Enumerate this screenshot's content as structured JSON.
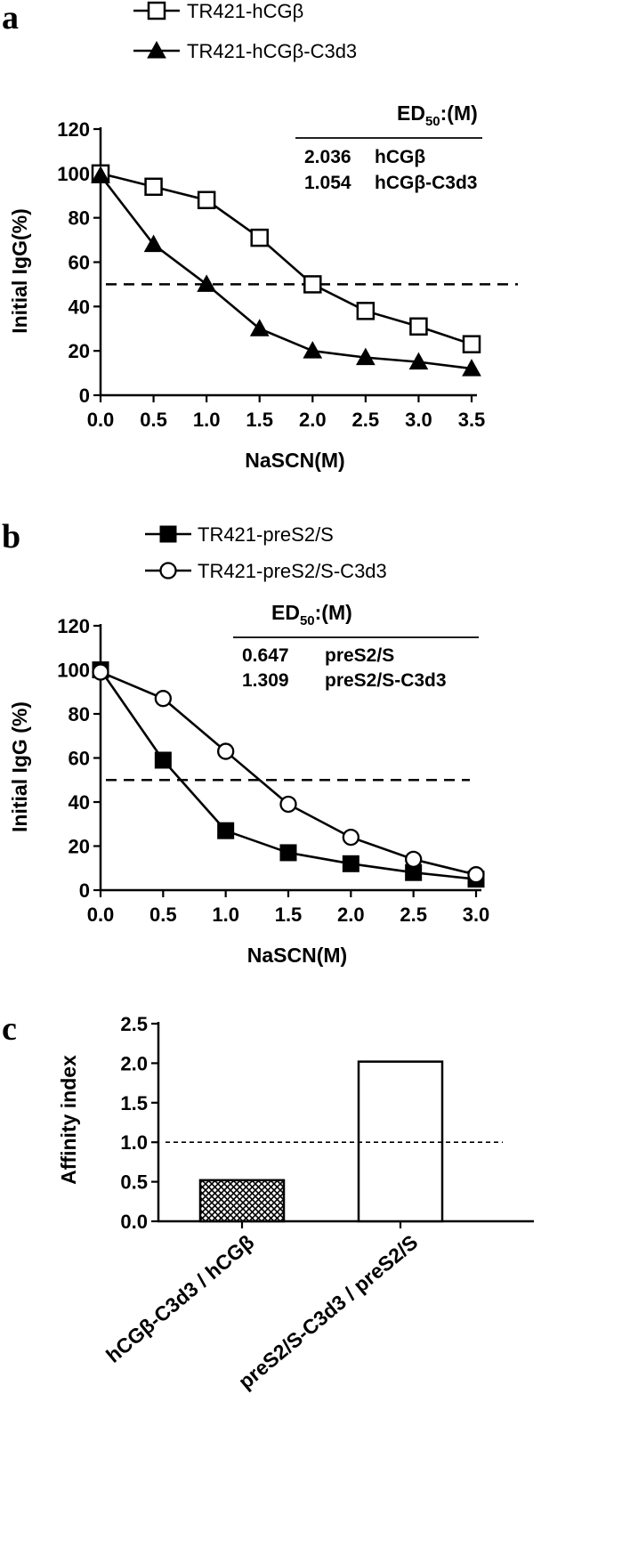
{
  "panels": {
    "a": {
      "letter": "a"
    },
    "b": {
      "letter": "b"
    },
    "c": {
      "letter": "c"
    }
  },
  "chart_data": [
    {
      "id": "a",
      "type": "line",
      "xlabel": "NaSCN(M)",
      "ylabel": "Initial IgG(%)",
      "xlim": [
        0,
        3.5
      ],
      "ylim": [
        0,
        120
      ],
      "x_ticks": [
        "0.0",
        "0.5",
        "1.0",
        "1.5",
        "2.0",
        "2.5",
        "3.0",
        "3.5"
      ],
      "y_ticks": [
        "0",
        "20",
        "40",
        "60",
        "80",
        "100",
        "120"
      ],
      "reference_line_y": 50,
      "series": [
        {
          "name": "TR421-hCGβ",
          "marker": "open-square",
          "x": [
            0,
            0.5,
            1.0,
            1.5,
            2.0,
            2.5,
            3.0,
            3.5
          ],
          "y": [
            100,
            94,
            88,
            71,
            50,
            38,
            31,
            23
          ]
        },
        {
          "name": "TR421-hCGβ-C3d3",
          "marker": "filled-triangle",
          "x": [
            0,
            0.5,
            1.0,
            1.5,
            2.0,
            2.5,
            3.0,
            3.5
          ],
          "y": [
            99,
            68,
            50,
            30,
            20,
            17,
            15,
            12
          ]
        }
      ],
      "ed50": {
        "title": "ED",
        "sub": "50",
        "suffix": ":(M)",
        "rows": [
          {
            "value": "2.036",
            "label": "hCGβ"
          },
          {
            "value": "1.054",
            "label": "hCGβ-C3d3"
          }
        ]
      }
    },
    {
      "id": "b",
      "type": "line",
      "xlabel": "NaSCN(M)",
      "ylabel": "Initial IgG (%)",
      "xlim": [
        0,
        3.0
      ],
      "ylim": [
        0,
        120
      ],
      "x_ticks": [
        "0.0",
        "0.5",
        "1.0",
        "1.5",
        "2.0",
        "2.5",
        "3.0"
      ],
      "y_ticks": [
        "0",
        "20",
        "40",
        "60",
        "80",
        "100",
        "120"
      ],
      "reference_line_y": 50,
      "series": [
        {
          "name": "TR421-preS2/S",
          "marker": "filled-square",
          "x": [
            0,
            0.5,
            1.0,
            1.5,
            2.0,
            2.5,
            3.0
          ],
          "y": [
            100,
            59,
            27,
            17,
            12,
            8,
            5
          ]
        },
        {
          "name": "TR421-preS2/S-C3d3",
          "marker": "open-circle",
          "x": [
            0,
            0.5,
            1.0,
            1.5,
            2.0,
            2.5,
            3.0
          ],
          "y": [
            99,
            87,
            63,
            39,
            24,
            14,
            7
          ]
        }
      ],
      "ed50": {
        "title": "ED",
        "sub": "50",
        "suffix": ":(M)",
        "rows": [
          {
            "value": "0.647",
            "label": "preS2/S"
          },
          {
            "value": "1.309",
            "label": "preS2/S-C3d3"
          }
        ]
      }
    },
    {
      "id": "c",
      "type": "bar",
      "ylabel": "Affinity index",
      "ylim": [
        0,
        2.5
      ],
      "y_ticks": [
        "0.0",
        "0.5",
        "1.0",
        "1.5",
        "2.0",
        "2.5"
      ],
      "reference_line_y": 1.0,
      "categories": [
        "hCGβ-C3d3 / hCGβ",
        "preS2/S-C3d3 / preS2/S"
      ],
      "values": [
        0.52,
        2.02
      ],
      "fills": [
        "crosshatch",
        "white"
      ]
    }
  ]
}
